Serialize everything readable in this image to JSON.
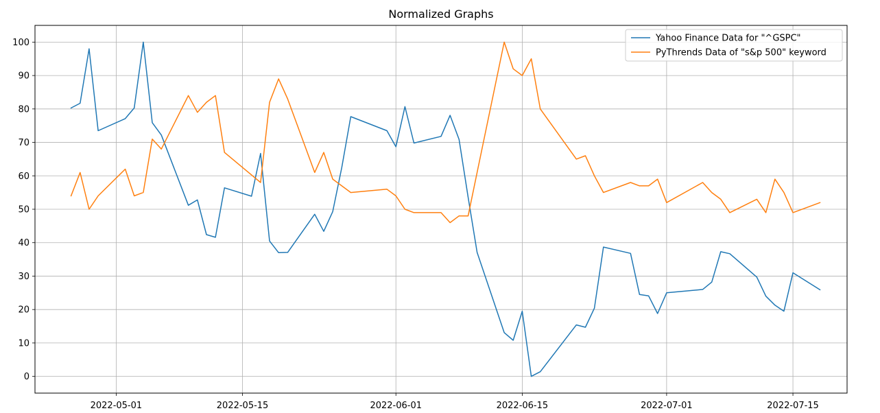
{
  "chart_data": {
    "type": "line",
    "title": "Normalized Graphs",
    "xlabel": "",
    "ylabel": "",
    "xlim": [
      "2022-04-22",
      "2022-07-21"
    ],
    "ylim": [
      -5,
      105
    ],
    "grid": true,
    "legend_position": "top-right",
    "x_ticks": [
      "2022-05-01",
      "2022-05-15",
      "2022-06-01",
      "2022-06-15",
      "2022-07-01",
      "2022-07-15"
    ],
    "y_ticks": [
      0,
      10,
      20,
      30,
      40,
      50,
      60,
      70,
      80,
      90,
      100
    ],
    "series": [
      {
        "name": "Yahoo Finance Data for \"^GSPC\"",
        "color": "#1f77b4",
        "points": [
          [
            "2022-04-26",
            80.3
          ],
          [
            "2022-04-27",
            81.7
          ],
          [
            "2022-04-28",
            98.0
          ],
          [
            "2022-04-29",
            73.5
          ],
          [
            "2022-05-02",
            77.1
          ],
          [
            "2022-05-03",
            80.3
          ],
          [
            "2022-05-04",
            100.0
          ],
          [
            "2022-05-05",
            75.9
          ],
          [
            "2022-05-06",
            72.2
          ],
          [
            "2022-05-09",
            51.2
          ],
          [
            "2022-05-10",
            52.8
          ],
          [
            "2022-05-11",
            42.4
          ],
          [
            "2022-05-12",
            41.6
          ],
          [
            "2022-05-13",
            56.4
          ],
          [
            "2022-05-16",
            53.9
          ],
          [
            "2022-05-17",
            66.7
          ],
          [
            "2022-05-18",
            40.5
          ],
          [
            "2022-05-19",
            37.0
          ],
          [
            "2022-05-20",
            37.1
          ],
          [
            "2022-05-23",
            48.5
          ],
          [
            "2022-05-24",
            43.4
          ],
          [
            "2022-05-25",
            49.3
          ],
          [
            "2022-05-26",
            62.5
          ],
          [
            "2022-05-27",
            77.7
          ],
          [
            "2022-05-31",
            73.5
          ],
          [
            "2022-06-01",
            68.7
          ],
          [
            "2022-06-02",
            80.7
          ],
          [
            "2022-06-03",
            69.8
          ],
          [
            "2022-06-06",
            71.8
          ],
          [
            "2022-06-07",
            78.1
          ],
          [
            "2022-06-08",
            70.9
          ],
          [
            "2022-06-09",
            53.6
          ],
          [
            "2022-06-10",
            37.1
          ],
          [
            "2022-06-13",
            13.1
          ],
          [
            "2022-06-14",
            10.8
          ],
          [
            "2022-06-15",
            19.5
          ],
          [
            "2022-06-16",
            0.0
          ],
          [
            "2022-06-17",
            1.4
          ],
          [
            "2022-06-21",
            15.4
          ],
          [
            "2022-06-22",
            14.7
          ],
          [
            "2022-06-23",
            20.4
          ],
          [
            "2022-06-24",
            38.7
          ],
          [
            "2022-06-27",
            36.8
          ],
          [
            "2022-06-28",
            24.5
          ],
          [
            "2022-06-29",
            24.1
          ],
          [
            "2022-06-30",
            18.8
          ],
          [
            "2022-07-01",
            25.0
          ],
          [
            "2022-07-05",
            26.0
          ],
          [
            "2022-07-06",
            28.2
          ],
          [
            "2022-07-07",
            37.3
          ],
          [
            "2022-07-08",
            36.7
          ],
          [
            "2022-07-11",
            29.7
          ],
          [
            "2022-07-12",
            24.0
          ],
          [
            "2022-07-13",
            21.3
          ],
          [
            "2022-07-14",
            19.5
          ],
          [
            "2022-07-15",
            31.0
          ],
          [
            "2022-07-18",
            25.9
          ]
        ]
      },
      {
        "name": "PyThrends Data of \"s&p 500\" keyword",
        "color": "#ff7f0e",
        "points": [
          [
            "2022-04-26",
            54
          ],
          [
            "2022-04-27",
            61
          ],
          [
            "2022-04-28",
            50
          ],
          [
            "2022-04-29",
            54
          ],
          [
            "2022-05-02",
            62
          ],
          [
            "2022-05-03",
            54
          ],
          [
            "2022-05-04",
            55
          ],
          [
            "2022-05-05",
            71
          ],
          [
            "2022-05-06",
            68
          ],
          [
            "2022-05-09",
            84
          ],
          [
            "2022-05-10",
            79
          ],
          [
            "2022-05-11",
            82
          ],
          [
            "2022-05-12",
            84
          ],
          [
            "2022-05-13",
            67
          ],
          [
            "2022-05-17",
            58
          ],
          [
            "2022-05-18",
            82
          ],
          [
            "2022-05-19",
            89
          ],
          [
            "2022-05-20",
            83
          ],
          [
            "2022-05-23",
            61
          ],
          [
            "2022-05-24",
            67
          ],
          [
            "2022-05-25",
            59
          ],
          [
            "2022-05-27",
            55
          ],
          [
            "2022-05-31",
            56
          ],
          [
            "2022-06-01",
            54
          ],
          [
            "2022-06-02",
            50
          ],
          [
            "2022-06-03",
            49
          ],
          [
            "2022-06-06",
            49
          ],
          [
            "2022-06-07",
            46
          ],
          [
            "2022-06-08",
            48
          ],
          [
            "2022-06-09",
            48
          ],
          [
            "2022-06-10",
            61
          ],
          [
            "2022-06-13",
            100
          ],
          [
            "2022-06-14",
            92
          ],
          [
            "2022-06-15",
            90
          ],
          [
            "2022-06-16",
            95
          ],
          [
            "2022-06-17",
            80
          ],
          [
            "2022-06-21",
            65
          ],
          [
            "2022-06-22",
            66
          ],
          [
            "2022-06-23",
            60
          ],
          [
            "2022-06-24",
            55
          ],
          [
            "2022-06-27",
            58
          ],
          [
            "2022-06-28",
            57
          ],
          [
            "2022-06-29",
            57
          ],
          [
            "2022-06-30",
            59
          ],
          [
            "2022-07-01",
            52
          ],
          [
            "2022-07-05",
            58
          ],
          [
            "2022-07-06",
            55
          ],
          [
            "2022-07-07",
            53
          ],
          [
            "2022-07-08",
            49
          ],
          [
            "2022-07-11",
            53
          ],
          [
            "2022-07-12",
            49
          ],
          [
            "2022-07-13",
            59
          ],
          [
            "2022-07-14",
            55
          ],
          [
            "2022-07-15",
            49
          ],
          [
            "2022-07-18",
            52
          ]
        ]
      }
    ]
  }
}
